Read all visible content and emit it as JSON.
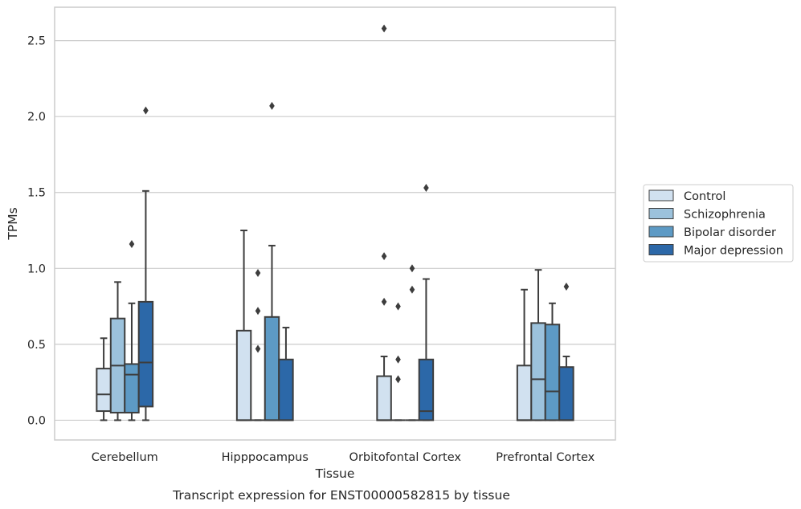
{
  "chart_data": {
    "type": "box",
    "xlabel": "Tissue",
    "ylabel": "TPMs",
    "caption": "Transcript expression for ENST00000582815 by tissue",
    "ylim": [
      -0.13,
      2.72
    ],
    "yticks": [
      "0.0",
      "0.5",
      "1.0",
      "1.5",
      "2.0",
      "2.5"
    ],
    "ytick_values": [
      0,
      0.5,
      1.0,
      1.5,
      2.0,
      2.5
    ],
    "grid": true,
    "legend_position": "right",
    "categories": [
      "Cerebellum",
      "Hipppocampus",
      "Orbitofontal Cortex",
      "Prefrontal Cortex"
    ],
    "series": [
      {
        "name": "Control",
        "color": "#d1e1f0",
        "boxes": [
          {
            "whislo": 0,
            "q1": 0.06,
            "med": 0.17,
            "q3": 0.34,
            "whishi": 0.54,
            "fliers": []
          },
          {
            "whislo": 0,
            "q1": 0,
            "med": 0,
            "q3": 0.59,
            "whishi": 1.25,
            "fliers": []
          },
          {
            "whislo": 0,
            "q1": 0,
            "med": 0,
            "q3": 0.29,
            "whishi": 0.42,
            "fliers": [
              1.08,
              0.78,
              2.58
            ]
          },
          {
            "whislo": 0,
            "q1": 0,
            "med": 0,
            "q3": 0.36,
            "whishi": 0.86,
            "fliers": []
          }
        ]
      },
      {
        "name": "Schizophrenia",
        "color": "#9cc2dc",
        "boxes": [
          {
            "whislo": 0,
            "q1": 0.05,
            "med": 0.36,
            "q3": 0.67,
            "whishi": 0.91,
            "fliers": []
          },
          {
            "whislo": 0,
            "q1": 0,
            "med": 0,
            "q3": 0,
            "whishi": 0,
            "fliers": [
              0.97,
              0.72,
              0.47
            ]
          },
          {
            "whislo": 0,
            "q1": 0,
            "med": 0,
            "q3": 0,
            "whishi": 0,
            "fliers": [
              0.75,
              0.4,
              0.27
            ]
          },
          {
            "whislo": 0,
            "q1": 0,
            "med": 0.27,
            "q3": 0.64,
            "whishi": 0.99,
            "fliers": []
          }
        ]
      },
      {
        "name": "Bipolar disorder",
        "color": "#5d9ac5",
        "boxes": [
          {
            "whislo": 0,
            "q1": 0.05,
            "med": 0.3,
            "q3": 0.37,
            "whishi": 0.77,
            "fliers": [
              1.16
            ]
          },
          {
            "whislo": 0,
            "q1": 0,
            "med": 0,
            "q3": 0.68,
            "whishi": 1.15,
            "fliers": [
              2.07
            ]
          },
          {
            "whislo": 0,
            "q1": 0,
            "med": 0,
            "q3": 0,
            "whishi": 0,
            "fliers": [
              1.0,
              0.86
            ]
          },
          {
            "whislo": 0,
            "q1": 0,
            "med": 0.19,
            "q3": 0.63,
            "whishi": 0.77,
            "fliers": []
          }
        ]
      },
      {
        "name": "Major depression",
        "color": "#2c68a8",
        "boxes": [
          {
            "whislo": 0,
            "q1": 0.09,
            "med": 0.38,
            "q3": 0.78,
            "whishi": 1.51,
            "fliers": [
              2.04
            ]
          },
          {
            "whislo": 0,
            "q1": 0,
            "med": 0,
            "q3": 0.4,
            "whishi": 0.61,
            "fliers": []
          },
          {
            "whislo": 0,
            "q1": 0,
            "med": 0.06,
            "q3": 0.4,
            "whishi": 0.93,
            "fliers": [
              1.53
            ]
          },
          {
            "whislo": 0,
            "q1": 0,
            "med": 0,
            "q3": 0.35,
            "whishi": 0.42,
            "fliers": [
              0.88
            ]
          }
        ]
      }
    ]
  }
}
